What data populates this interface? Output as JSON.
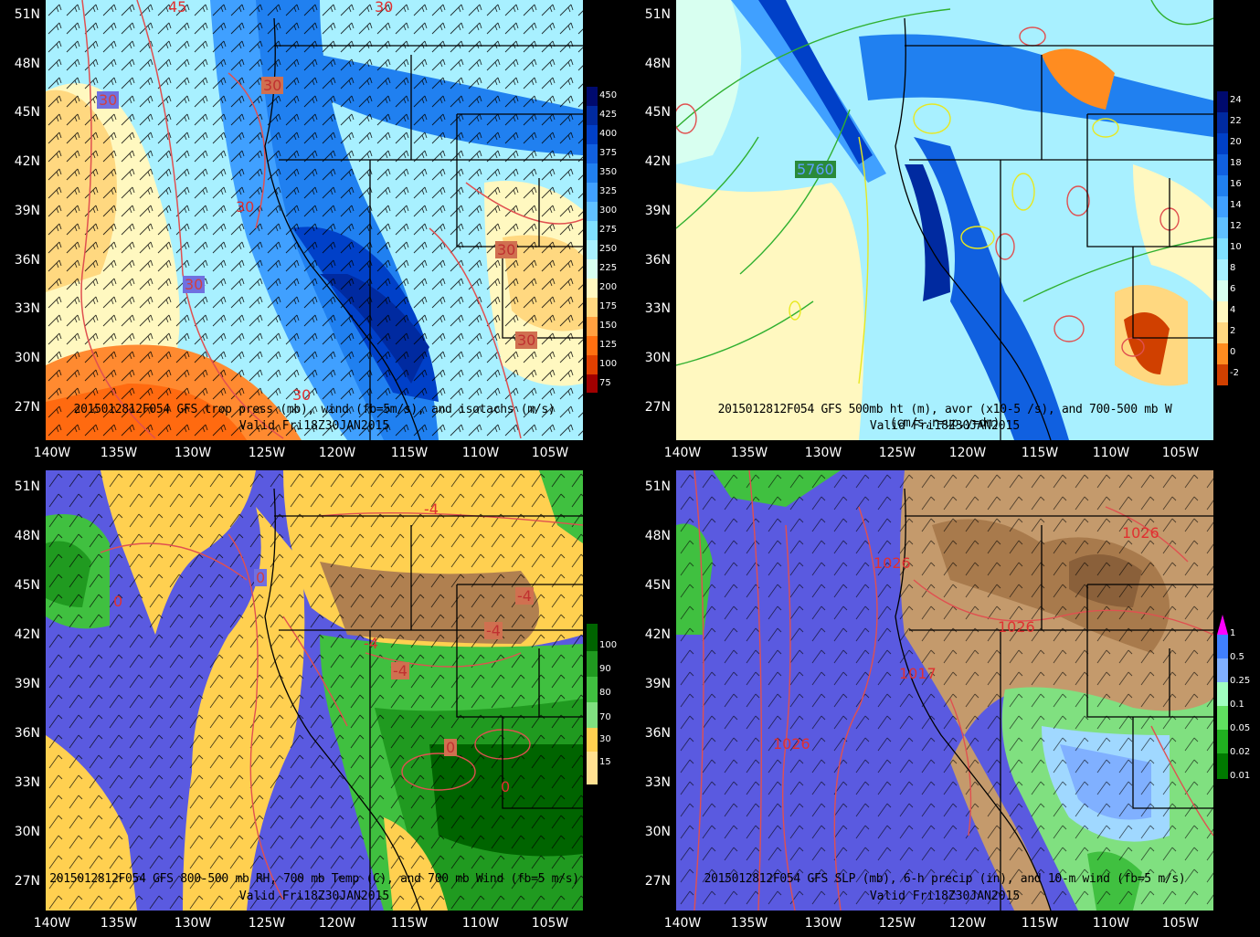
{
  "lat_labels": [
    "51N",
    "48N",
    "45N",
    "42N",
    "39N",
    "36N",
    "33N",
    "30N",
    "27N"
  ],
  "lon_labels": [
    "140W",
    "135W",
    "130W",
    "125W",
    "120W",
    "115W",
    "110W",
    "105W"
  ],
  "panels": {
    "tl": {
      "title": "2015012812F054 GFS trop press (mb), wind (fb=5m/s), and isotachs (m/s)",
      "valid": "Valid Fri18Z30JAN2015",
      "colorbar": [
        "450",
        "425",
        "400",
        "375",
        "350",
        "325",
        "300",
        "275",
        "250",
        "225",
        "200",
        "175",
        "150",
        "125",
        "100",
        "75"
      ],
      "colors": [
        "#000a6e",
        "#002aa0",
        "#0040c8",
        "#1060e0",
        "#2080f0",
        "#40a0ff",
        "#60c0ff",
        "#80e0ff",
        "#a8f0ff",
        "#d8fff0",
        "#fff8c0",
        "#ffd880",
        "#ffa040",
        "#ff7010",
        "#e04000",
        "#a00000"
      ],
      "contour_labels": [
        "45",
        "30",
        "30",
        "30",
        "30",
        "30",
        "30",
        "30",
        "30"
      ]
    },
    "tr": {
      "title": "2015012812F054 GFS 500mb ht (m), avor (x10-5 /s), and 700-500 mb W (cm/s,r=up,y=dn)",
      "valid": "Valid Fri18Z30JAN2015",
      "colorbar": [
        "24",
        "22",
        "20",
        "18",
        "16",
        "14",
        "12",
        "10",
        "8",
        "6",
        "4",
        "2",
        "0",
        "-2"
      ],
      "colors": [
        "#000a6e",
        "#002aa0",
        "#0040c8",
        "#1060e0",
        "#2080f0",
        "#40a0ff",
        "#60c0ff",
        "#80e0ff",
        "#a8f0ff",
        "#d8fff0",
        "#fff8c0",
        "#ffd880",
        "#ff8c20",
        "#d04000"
      ],
      "contour_labels": [
        "5760"
      ]
    },
    "bl": {
      "title": "2015012812F054 GFS 800-500 mb RH, 700 mb Temp (C), and 700 mb Wind (fb=5 m/s)",
      "valid": "Valid Fri18Z30JAN2015",
      "colorbar": [
        "100",
        "90",
        "80",
        "70",
        "30",
        "15"
      ],
      "colors": [
        "#006400",
        "#209a20",
        "#40c040",
        "#80e080",
        "#ffd050",
        "#ffe090"
      ],
      "contour_labels": [
        "-4",
        "-4",
        "-4",
        "-4",
        "0",
        "0",
        "0",
        "0",
        "-4"
      ]
    },
    "br": {
      "title": "2015012812F054 GFS SLP (mb), 6-h precip (in), and 10-m wind (fb=5 m/s)",
      "valid": "Valid Fri18Z30JAN2015",
      "colorbar": [
        "1",
        "0.5",
        "0.25",
        "0.1",
        "0.05",
        "0.02",
        "0.01"
      ],
      "colors": [
        "#ff00ff",
        "#4080ff",
        "#80b0ff",
        "#a0ffc0",
        "#60e060",
        "#20b020",
        "#007a00"
      ],
      "contour_labels": [
        "1026",
        "1026",
        "1026",
        "1017",
        "1026"
      ]
    }
  }
}
